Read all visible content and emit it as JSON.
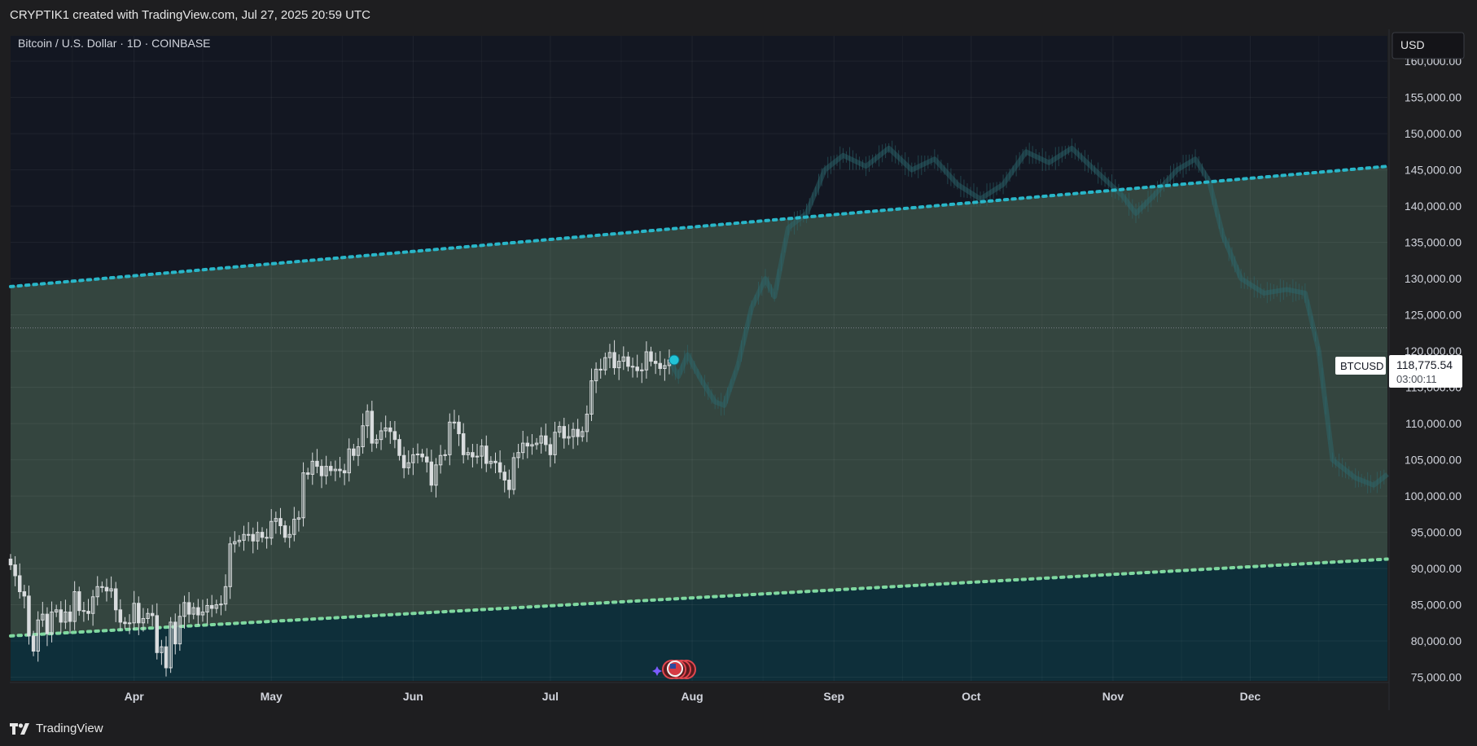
{
  "header": {
    "credit": "CRYPTIK1 created with TradingView.com, Jul 27, 2025 20:59 UTC"
  },
  "footer": {
    "brand": "TradingView"
  },
  "colors": {
    "background": "#131722",
    "channel_fill": "#34453f",
    "lower_fill": "#0e2f3a",
    "upper_line": "#29b6c8",
    "lower_line": "#7fd8a0",
    "candle": "#d9dcde",
    "projection": "#2c6a70"
  },
  "chart_data": {
    "type": "candlestick",
    "title": "Bitcoin / U.S. Dollar · 1D · COINBASE",
    "symbol": "BTCUSD",
    "currency": "USD",
    "last_price": "118,775.54",
    "countdown": "03:00:11",
    "x_tick_labels": [
      "Apr",
      "May",
      "Jun",
      "Jul",
      "Aug",
      "Sep",
      "Oct",
      "Nov",
      "Dec"
    ],
    "x_range": [
      "2025-03-05",
      "2025-12-31"
    ],
    "y_range": [
      74500,
      163500
    ],
    "y_ticks": [
      75000,
      80000,
      85000,
      90000,
      95000,
      100000,
      105000,
      110000,
      115000,
      120000,
      125000,
      130000,
      135000,
      140000,
      145000,
      150000,
      155000,
      160000
    ],
    "y_tick_labels": [
      "75,000.00",
      "80,000.00",
      "85,000.00",
      "90,000.00",
      "95,000.00",
      "100,000.00",
      "105,000.00",
      "110,000.00",
      "115,000.00",
      "120,000.00",
      "125,000.00",
      "130,000.00",
      "135,000.00",
      "140,000.00",
      "145,000.00",
      "150,000.00",
      "155,000.00",
      "160,000.00"
    ],
    "grid": true,
    "channel": {
      "upper": [
        [
          "2025-03-05",
          128900
        ],
        [
          "2025-12-31",
          145500
        ]
      ],
      "lower": [
        [
          "2025-03-05",
          80700
        ],
        [
          "2025-12-31",
          91300
        ]
      ]
    },
    "horizontal_line": 123200,
    "candles_close": [
      [
        "2025-03-05",
        90500
      ],
      [
        "2025-03-06",
        89000
      ],
      [
        "2025-03-07",
        86800
      ],
      [
        "2025-03-08",
        86200
      ],
      [
        "2025-03-09",
        80700
      ],
      [
        "2025-03-10",
        78600
      ],
      [
        "2025-03-11",
        82900
      ],
      [
        "2025-03-12",
        83700
      ],
      [
        "2025-03-13",
        81000
      ],
      [
        "2025-03-14",
        84000
      ],
      [
        "2025-03-15",
        84300
      ],
      [
        "2025-03-16",
        82600
      ],
      [
        "2025-03-17",
        84000
      ],
      [
        "2025-03-18",
        82700
      ],
      [
        "2025-03-19",
        86800
      ],
      [
        "2025-03-20",
        84200
      ],
      [
        "2025-03-21",
        84100
      ],
      [
        "2025-03-22",
        83800
      ],
      [
        "2025-03-23",
        86100
      ],
      [
        "2025-03-24",
        87500
      ],
      [
        "2025-03-25",
        87400
      ],
      [
        "2025-03-26",
        86900
      ],
      [
        "2025-03-27",
        87200
      ],
      [
        "2025-03-28",
        84300
      ],
      [
        "2025-03-29",
        82600
      ],
      [
        "2025-03-30",
        82400
      ],
      [
        "2025-03-31",
        82500
      ],
      [
        "2025-04-01",
        85200
      ],
      [
        "2025-04-02",
        82500
      ],
      [
        "2025-04-03",
        83100
      ],
      [
        "2025-04-04",
        83800
      ],
      [
        "2025-04-05",
        83500
      ],
      [
        "2025-04-06",
        78400
      ],
      [
        "2025-04-07",
        79200
      ],
      [
        "2025-04-08",
        76300
      ],
      [
        "2025-04-09",
        82600
      ],
      [
        "2025-04-10",
        79600
      ],
      [
        "2025-04-11",
        83400
      ],
      [
        "2025-04-12",
        85300
      ],
      [
        "2025-04-13",
        83700
      ],
      [
        "2025-04-14",
        84600
      ],
      [
        "2025-04-15",
        83600
      ],
      [
        "2025-04-16",
        84000
      ],
      [
        "2025-04-17",
        84900
      ],
      [
        "2025-04-18",
        84500
      ],
      [
        "2025-04-19",
        85000
      ],
      [
        "2025-04-20",
        85100
      ],
      [
        "2025-04-21",
        87500
      ],
      [
        "2025-04-22",
        93400
      ],
      [
        "2025-04-23",
        93700
      ],
      [
        "2025-04-24",
        93900
      ],
      [
        "2025-04-25",
        94700
      ],
      [
        "2025-04-26",
        94700
      ],
      [
        "2025-04-27",
        93800
      ],
      [
        "2025-04-28",
        95000
      ],
      [
        "2025-04-29",
        94300
      ],
      [
        "2025-04-30",
        94200
      ],
      [
        "2025-05-01",
        96500
      ],
      [
        "2025-05-02",
        96900
      ],
      [
        "2025-05-03",
        95900
      ],
      [
        "2025-05-04",
        94300
      ],
      [
        "2025-05-05",
        94700
      ],
      [
        "2025-05-06",
        96800
      ],
      [
        "2025-05-07",
        97000
      ],
      [
        "2025-05-08",
        103200
      ],
      [
        "2025-05-09",
        103000
      ],
      [
        "2025-05-10",
        104800
      ],
      [
        "2025-05-11",
        104100
      ],
      [
        "2025-05-12",
        102800
      ],
      [
        "2025-05-13",
        104100
      ],
      [
        "2025-05-14",
        103500
      ],
      [
        "2025-05-15",
        103700
      ],
      [
        "2025-05-16",
        103500
      ],
      [
        "2025-05-17",
        103200
      ],
      [
        "2025-05-18",
        106500
      ],
      [
        "2025-05-19",
        105600
      ],
      [
        "2025-05-20",
        106800
      ],
      [
        "2025-05-21",
        109700
      ],
      [
        "2025-05-22",
        111700
      ],
      [
        "2025-05-23",
        107300
      ],
      [
        "2025-05-24",
        107800
      ],
      [
        "2025-05-25",
        109000
      ],
      [
        "2025-05-26",
        109400
      ],
      [
        "2025-05-27",
        108900
      ],
      [
        "2025-05-28",
        107800
      ],
      [
        "2025-05-29",
        105600
      ],
      [
        "2025-05-30",
        103900
      ],
      [
        "2025-05-31",
        104600
      ],
      [
        "2025-06-01",
        105700
      ],
      [
        "2025-06-02",
        105800
      ],
      [
        "2025-06-03",
        105400
      ],
      [
        "2025-06-04",
        104700
      ],
      [
        "2025-06-05",
        101500
      ],
      [
        "2025-06-06",
        104300
      ],
      [
        "2025-06-07",
        105600
      ],
      [
        "2025-06-08",
        105700
      ],
      [
        "2025-06-09",
        110200
      ],
      [
        "2025-06-10",
        110200
      ],
      [
        "2025-06-11",
        108600
      ],
      [
        "2025-06-12",
        105700
      ],
      [
        "2025-06-13",
        106000
      ],
      [
        "2025-06-14",
        105400
      ],
      [
        "2025-06-15",
        105500
      ],
      [
        "2025-06-16",
        106900
      ],
      [
        "2025-06-17",
        104500
      ],
      [
        "2025-06-18",
        104800
      ],
      [
        "2025-06-19",
        104600
      ],
      [
        "2025-06-20",
        103300
      ],
      [
        "2025-06-21",
        102200
      ],
      [
        "2025-06-22",
        100900
      ],
      [
        "2025-06-23",
        105300
      ],
      [
        "2025-06-24",
        106000
      ],
      [
        "2025-06-25",
        107300
      ],
      [
        "2025-06-26",
        106900
      ],
      [
        "2025-06-27",
        107100
      ],
      [
        "2025-06-28",
        107300
      ],
      [
        "2025-06-29",
        108300
      ],
      [
        "2025-06-30",
        107100
      ],
      [
        "2025-07-01",
        105700
      ],
      [
        "2025-07-02",
        108800
      ],
      [
        "2025-07-03",
        109600
      ],
      [
        "2025-07-04",
        108000
      ],
      [
        "2025-07-05",
        108200
      ],
      [
        "2025-07-06",
        109200
      ],
      [
        "2025-07-07",
        108200
      ],
      [
        "2025-07-08",
        108900
      ],
      [
        "2025-07-09",
        111300
      ],
      [
        "2025-07-10",
        115900
      ],
      [
        "2025-07-11",
        117500
      ],
      [
        "2025-07-12",
        117400
      ],
      [
        "2025-07-13",
        119100
      ],
      [
        "2025-07-14",
        119800
      ],
      [
        "2025-07-15",
        117700
      ],
      [
        "2025-07-16",
        118600
      ],
      [
        "2025-07-17",
        119200
      ],
      [
        "2025-07-18",
        117900
      ],
      [
        "2025-07-19",
        117800
      ],
      [
        "2025-07-20",
        117300
      ],
      [
        "2025-07-21",
        117400
      ],
      [
        "2025-07-22",
        119900
      ],
      [
        "2025-07-23",
        118600
      ],
      [
        "2025-07-24",
        118300
      ],
      [
        "2025-07-25",
        117600
      ],
      [
        "2025-07-26",
        118000
      ],
      [
        "2025-07-27",
        118775
      ]
    ],
    "projection_path": [
      [
        "2025-07-27",
        118800
      ],
      [
        "2025-07-29",
        116500
      ],
      [
        "2025-07-31",
        119500
      ],
      [
        "2025-08-03",
        116000
      ],
      [
        "2025-08-06",
        113000
      ],
      [
        "2025-08-08",
        112500
      ],
      [
        "2025-08-11",
        118000
      ],
      [
        "2025-08-14",
        126000
      ],
      [
        "2025-08-17",
        130000
      ],
      [
        "2025-08-19",
        127500
      ],
      [
        "2025-08-22",
        137000
      ],
      [
        "2025-08-26",
        139000
      ],
      [
        "2025-08-30",
        145000
      ],
      [
        "2025-09-03",
        147000
      ],
      [
        "2025-09-08",
        145500
      ],
      [
        "2025-09-13",
        148000
      ],
      [
        "2025-09-18",
        145000
      ],
      [
        "2025-09-23",
        146500
      ],
      [
        "2025-09-28",
        143000
      ],
      [
        "2025-10-03",
        141000
      ],
      [
        "2025-10-08",
        143000
      ],
      [
        "2025-10-13",
        147500
      ],
      [
        "2025-10-18",
        146000
      ],
      [
        "2025-10-23",
        148000
      ],
      [
        "2025-10-28",
        145000
      ],
      [
        "2025-11-03",
        141500
      ],
      [
        "2025-11-06",
        139000
      ],
      [
        "2025-11-10",
        141500
      ],
      [
        "2025-11-15",
        145000
      ],
      [
        "2025-11-19",
        146500
      ],
      [
        "2025-11-22",
        143500
      ],
      [
        "2025-11-25",
        136000
      ],
      [
        "2025-11-29",
        130000
      ],
      [
        "2025-12-04",
        128000
      ],
      [
        "2025-12-09",
        128500
      ],
      [
        "2025-12-13",
        128000
      ],
      [
        "2025-12-16",
        120000
      ],
      [
        "2025-12-19",
        105000
      ],
      [
        "2025-12-24",
        102500
      ],
      [
        "2025-12-28",
        101500
      ],
      [
        "2025-12-31",
        103000
      ]
    ]
  }
}
